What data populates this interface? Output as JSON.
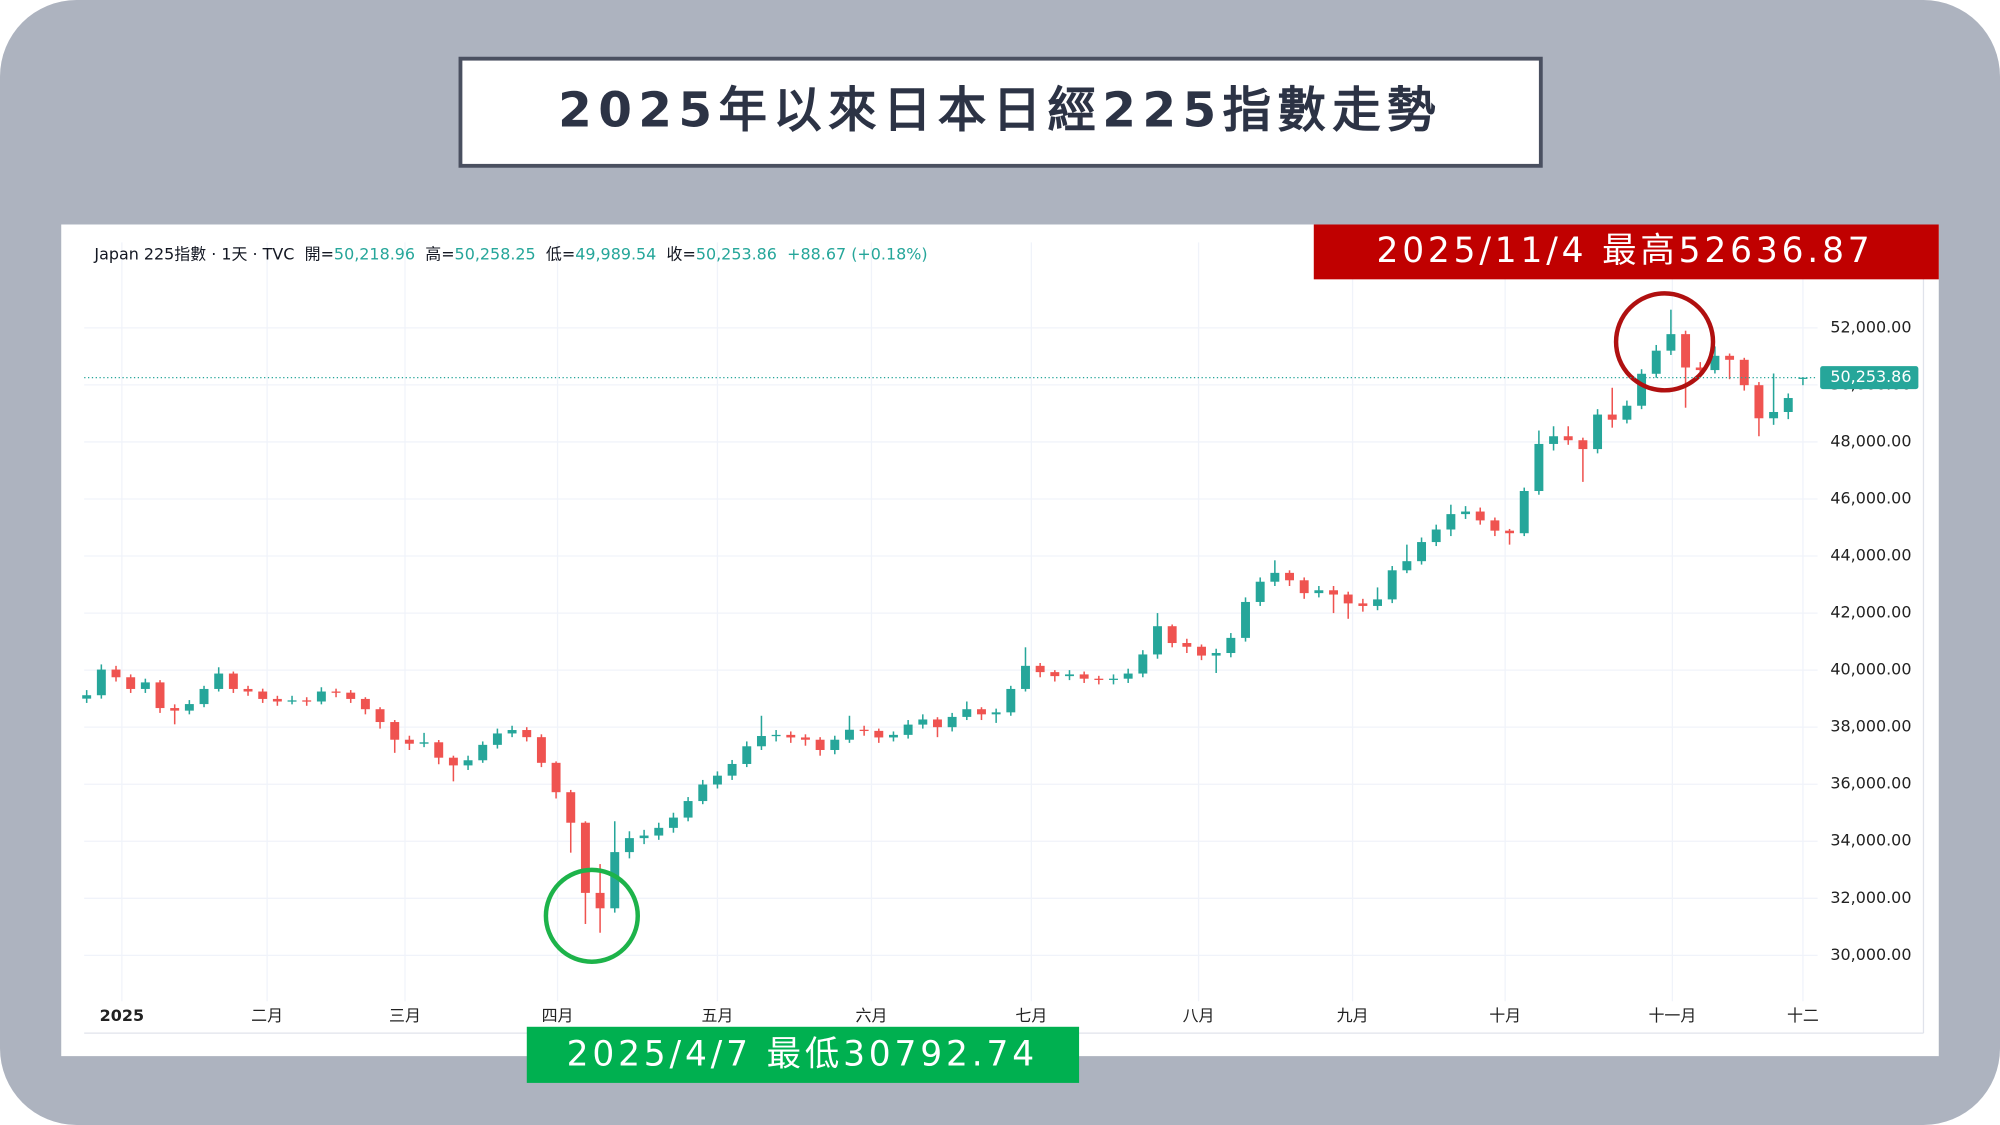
{
  "chart_data": {
    "type": "candlestick",
    "title": "2025年以來日本日經225指數走勢",
    "header": {
      "symbol": "Japan 225指數 · 1天 · TVC",
      "fields": [
        {
          "key": "開=",
          "value": 50218.96,
          "label": "50,218.96"
        },
        {
          "key": "高=",
          "value": 50258.25,
          "label": "50,258.25"
        },
        {
          "key": "低=",
          "value": 49989.54,
          "label": "49,989.54"
        },
        {
          "key": "收=",
          "value": 50253.86,
          "label": "50,253.86"
        }
      ],
      "change": "+88.67 (+0.18%)"
    },
    "annotations": [
      {
        "text": "2025/11/4 最高52636.87",
        "color": "#c00000"
      },
      {
        "text": "2025/4/7 最低30792.74",
        "color": "#00b050"
      }
    ],
    "last_price": {
      "value": 50253.86,
      "label": "50,253.86",
      "color": "#26a69a"
    },
    "up_color": "#26a69a",
    "down_color": "#ef5350",
    "grid": true,
    "xlim": [
      -0.17,
      118
    ],
    "xticks": [
      {
        "value": 2.4,
        "label": "2025"
      },
      {
        "value": 12.3,
        "label": "二月"
      },
      {
        "value": 21.7,
        "label": "三月"
      },
      {
        "value": 32.1,
        "label": "四月"
      },
      {
        "value": 43.0,
        "label": "五月"
      },
      {
        "value": 53.5,
        "label": "六月"
      },
      {
        "value": 64.4,
        "label": "七月"
      },
      {
        "value": 75.8,
        "label": "八月"
      },
      {
        "value": 86.3,
        "label": "九月"
      },
      {
        "value": 96.7,
        "label": "十月"
      },
      {
        "value": 108.1,
        "label": "十一月"
      },
      {
        "value": 117,
        "label": "十二"
      }
    ],
    "ylim": [
      28390,
      53880
    ],
    "yticks": [
      {
        "value": 30000,
        "label": "30,000.00"
      },
      {
        "value": 32000,
        "label": "32,000.00"
      },
      {
        "value": 34000,
        "label": "34,000.00"
      },
      {
        "value": 36000,
        "label": "36,000.00"
      },
      {
        "value": 38000,
        "label": "38,000.00"
      },
      {
        "value": 40000,
        "label": "40,000.00"
      },
      {
        "value": 42000,
        "label": "42,000.00"
      },
      {
        "value": 44000,
        "label": "44,000.00"
      },
      {
        "value": 46000,
        "label": "46,000.00"
      },
      {
        "value": 48000,
        "label": "48,000.00"
      },
      {
        "value": 50000,
        "label": "50,000.00"
      },
      {
        "value": 52000,
        "label": "52,000.00"
      }
    ],
    "open": [
      39000,
      39120,
      40020,
      39750,
      39340,
      39570,
      38670,
      38580,
      38810,
      39340,
      39880,
      39340,
      39250,
      38990,
      38900,
      38940,
      38900,
      39250,
      39210,
      38990,
      38630,
      38180,
      37560,
      37420,
      37470,
      36930,
      36660,
      36840,
      37380,
      37780,
      37900,
      37650,
      36750,
      35720,
      34650,
      32190,
      31650,
      33620,
      34110,
      34200,
      34470,
      34830,
      35410,
      35990,
      36300,
      36710,
      37330,
      37690,
      37730,
      37640,
      37560,
      37200,
      37560,
      37910,
      37870,
      37640,
      37730,
      38090,
      38270,
      38000,
      38360,
      38630,
      38450,
      38520,
      39340,
      40150,
      39930,
      39790,
      39850,
      39700,
      39660,
      39700,
      39880,
      40550,
      41540,
      40950,
      40820,
      40510,
      40600,
      41130,
      42390,
      43100,
      43410,
      43150,
      42700,
      42800,
      42650,
      42340,
      42250,
      42480,
      43500,
      43820,
      44490,
      44930,
      45470,
      45560,
      45250,
      44890,
      44800,
      46280,
      47930,
      48200,
      48060,
      47750,
      48960,
      48780,
      49270,
      50390,
      51200,
      51780,
      50610,
      50520,
      51020,
      50880,
      49990,
      48830,
      49050,
      50218.96
    ],
    "high": [
      39300,
      40200,
      40150,
      39850,
      39700,
      39650,
      38800,
      38950,
      39450,
      40100,
      39950,
      39450,
      39350,
      39100,
      39100,
      39050,
      39400,
      39350,
      39300,
      39050,
      38700,
      38250,
      37700,
      37800,
      37550,
      37000,
      37000,
      37500,
      37950,
      38050,
      38000,
      37750,
      36800,
      35800,
      34700,
      33200,
      34700,
      34350,
      34400,
      34650,
      35000,
      35550,
      36150,
      36450,
      36850,
      37500,
      38400,
      37900,
      37850,
      37750,
      37650,
      37700,
      38400,
      38050,
      37950,
      37850,
      38250,
      38450,
      38350,
      38500,
      38900,
      38700,
      38650,
      39450,
      40800,
      40250,
      40000,
      40000,
      39950,
      39800,
      39850,
      40050,
      40700,
      42000,
      41600,
      41100,
      40900,
      40750,
      41300,
      42550,
      43250,
      43850,
      43500,
      43250,
      42950,
      42950,
      42750,
      42500,
      42900,
      43650,
      44400,
      44650,
      45100,
      45800,
      45750,
      45700,
      45350,
      44950,
      46400,
      48400,
      48550,
      48550,
      48150,
      49150,
      49900,
      49450,
      50550,
      51400,
      52636.87,
      51900,
      50800,
      51350,
      51100,
      50950,
      50100,
      50400,
      49700,
      50258.25
    ],
    "low": [
      38850,
      39000,
      39600,
      39200,
      39200,
      38500,
      38100,
      38450,
      38700,
      39250,
      39200,
      39100,
      38850,
      38750,
      38800,
      38750,
      38800,
      39050,
      38850,
      38450,
      37950,
      37100,
      37200,
      37300,
      36700,
      36100,
      36500,
      36750,
      37250,
      37650,
      37500,
      36600,
      35500,
      33600,
      31100,
      30792.74,
      31500,
      33400,
      33900,
      34050,
      34300,
      34700,
      35300,
      35850,
      36150,
      36600,
      37200,
      37500,
      37450,
      37350,
      37000,
      37050,
      37450,
      37700,
      37450,
      37500,
      37600,
      37950,
      37650,
      37850,
      38250,
      38250,
      38150,
      38400,
      39250,
      39750,
      39600,
      39650,
      39550,
      39500,
      39500,
      39550,
      39750,
      40400,
      40800,
      40600,
      40350,
      39900,
      40450,
      41000,
      42250,
      42950,
      42950,
      42500,
      42550,
      42000,
      41800,
      42050,
      42100,
      42350,
      43400,
      43700,
      44350,
      44700,
      45300,
      45100,
      44700,
      44400,
      44700,
      46150,
      47700,
      47900,
      46600,
      47600,
      48500,
      48650,
      49150,
      50250,
      51050,
      49200,
      50300,
      50400,
      50200,
      49800,
      48200,
      48600,
      48800,
      49989.54
    ],
    "close": [
      39120,
      40020,
      39750,
      39340,
      39570,
      38670,
      38580,
      38810,
      39340,
      39880,
      39340,
      39250,
      38990,
      38900,
      38940,
      38900,
      39250,
      39210,
      38990,
      38630,
      38180,
      37560,
      37420,
      37470,
      36930,
      36660,
      36840,
      37380,
      37780,
      37900,
      37650,
      36750,
      35720,
      34650,
      32190,
      31650,
      33620,
      34110,
      34200,
      34470,
      34830,
      35410,
      35990,
      36300,
      36710,
      37330,
      37690,
      37730,
      37640,
      37560,
      37200,
      37560,
      37910,
      37870,
      37640,
      37730,
      38090,
      38270,
      38000,
      38360,
      38630,
      38450,
      38520,
      39340,
      40150,
      39930,
      39790,
      39850,
      39700,
      39660,
      39700,
      39880,
      40550,
      41540,
      40950,
      40820,
      40510,
      40600,
      41130,
      42390,
      43100,
      43410,
      43150,
      42700,
      42800,
      42650,
      42340,
      42250,
      42480,
      43500,
      43820,
      44490,
      44930,
      45470,
      45560,
      45250,
      44890,
      44800,
      46280,
      47930,
      48200,
      48060,
      47750,
      48960,
      48780,
      49270,
      50390,
      51200,
      51780,
      50610,
      50520,
      51020,
      50880,
      49990,
      48830,
      49050,
      49540,
      50253.86
    ]
  }
}
